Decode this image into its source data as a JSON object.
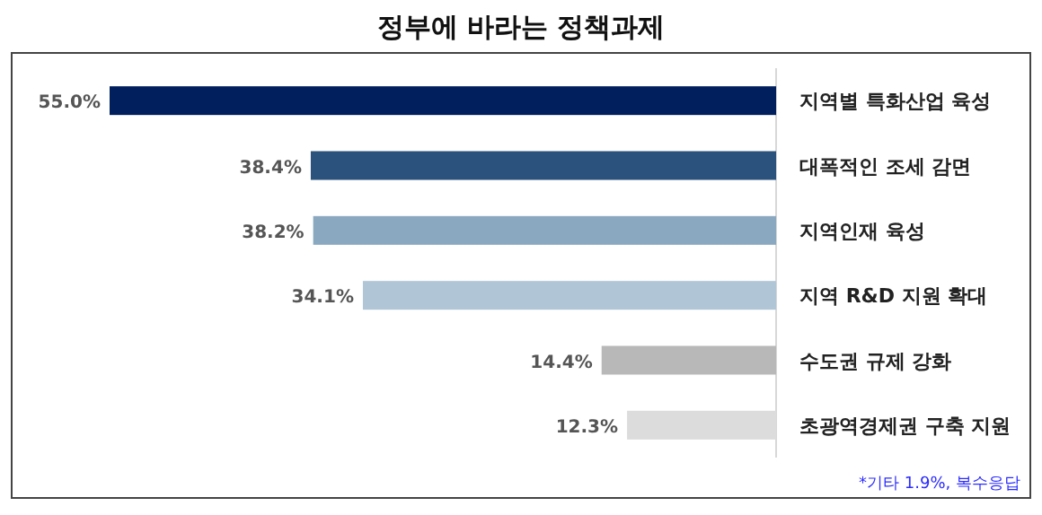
{
  "chart_data": {
    "type": "bar",
    "orientation": "horizontal",
    "title": "정부에 바라는 정책과제",
    "categories": [
      "지역별 특화산업 육성",
      "대폭적인 조세 감면",
      "지역인재 육성",
      "지역 R&D 지원 확대",
      "수도권 규제 강화",
      "초광역경제권 구축 지원"
    ],
    "values": [
      55.0,
      38.4,
      38.2,
      34.1,
      14.4,
      12.3
    ],
    "colors": [
      "#001f5c",
      "#2a527c",
      "#8aa9c0",
      "#b0c6d6",
      "#b8b8b8",
      "#dcdcdc"
    ],
    "value_labels": [
      "55.0%",
      "38.4%",
      "38.2%",
      "34.1%",
      "14.4%",
      "12.3%"
    ],
    "annotations": [
      "*기타 1.9%, 복수응답"
    ]
  }
}
